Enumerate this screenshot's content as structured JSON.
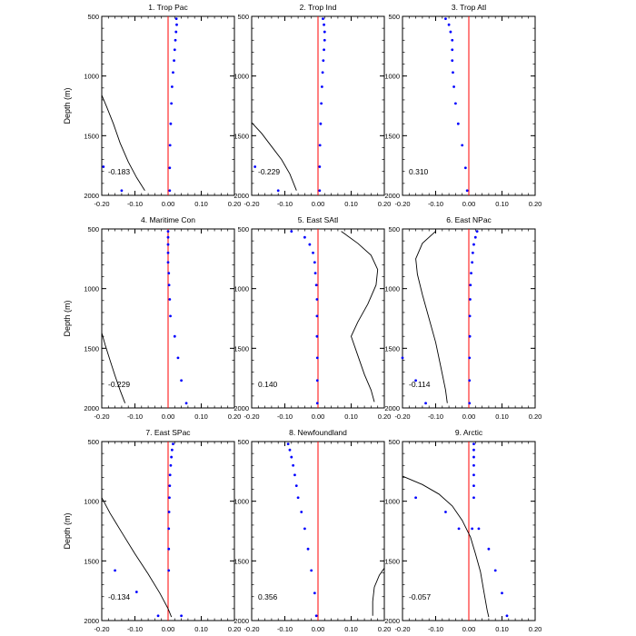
{
  "figure": {
    "ylabel": "Depth (m)",
    "xticks": [
      -0.2,
      -0.1,
      0.0,
      0.1,
      0.2
    ],
    "xtick_labels": [
      "-0.20",
      "-0.10",
      "0.00",
      "0.10",
      "0.20"
    ],
    "yticks": [
      500,
      1000,
      1500,
      2000
    ],
    "ytick_labels": [
      "500",
      "1000",
      "1500",
      "2000"
    ]
  },
  "colors": {
    "dots": "#0000ff",
    "zero_line": "#ff0000",
    "curve": "#000000",
    "frame": "#000000"
  },
  "chart_data": [
    {
      "type": "scatter",
      "title": "1. Trop Pac",
      "annotation": "-0.183",
      "xlim": [
        -0.2,
        0.2
      ],
      "ylim": [
        500,
        2000
      ],
      "y_inverted": true,
      "dots": [
        [
          0.025,
          520
        ],
        [
          0.026,
          570
        ],
        [
          0.024,
          630
        ],
        [
          0.022,
          700
        ],
        [
          0.02,
          780
        ],
        [
          0.018,
          870
        ],
        [
          0.015,
          970
        ],
        [
          0.012,
          1090
        ],
        [
          0.01,
          1230
        ],
        [
          0.008,
          1400
        ],
        [
          0.006,
          1580
        ],
        [
          0.005,
          1770
        ],
        [
          -0.195,
          1760
        ],
        [
          -0.14,
          1960
        ],
        [
          0.005,
          1960
        ]
      ],
      "curve": [
        [
          -0.2,
          1160
        ],
        [
          -0.185,
          1260
        ],
        [
          -0.165,
          1400
        ],
        [
          -0.145,
          1560
        ],
        [
          -0.12,
          1720
        ],
        [
          -0.095,
          1850
        ],
        [
          -0.07,
          1960
        ]
      ]
    },
    {
      "type": "scatter",
      "title": "2. Trop Ind",
      "annotation": "-0.229",
      "xlim": [
        -0.2,
        0.2
      ],
      "ylim": [
        500,
        2000
      ],
      "y_inverted": true,
      "dots": [
        [
          0.015,
          520
        ],
        [
          0.018,
          570
        ],
        [
          0.02,
          630
        ],
        [
          0.02,
          700
        ],
        [
          0.018,
          780
        ],
        [
          0.016,
          870
        ],
        [
          0.014,
          970
        ],
        [
          0.012,
          1090
        ],
        [
          0.01,
          1230
        ],
        [
          0.008,
          1400
        ],
        [
          0.006,
          1580
        ],
        [
          0.005,
          1760
        ],
        [
          -0.19,
          1760
        ],
        [
          -0.12,
          1960
        ],
        [
          0.005,
          1960
        ]
      ],
      "curve": [
        [
          -0.2,
          1390
        ],
        [
          -0.17,
          1480
        ],
        [
          -0.14,
          1590
        ],
        [
          -0.11,
          1700
        ],
        [
          -0.085,
          1820
        ],
        [
          -0.065,
          1960
        ]
      ]
    },
    {
      "type": "scatter",
      "title": "3. Trop Atl",
      "annotation": "0.310",
      "xlim": [
        -0.2,
        0.2
      ],
      "ylim": [
        500,
        2000
      ],
      "y_inverted": true,
      "dots": [
        [
          -0.07,
          520
        ],
        [
          -0.06,
          570
        ],
        [
          -0.055,
          630
        ],
        [
          -0.05,
          700
        ],
        [
          -0.05,
          780
        ],
        [
          -0.05,
          870
        ],
        [
          -0.048,
          970
        ],
        [
          -0.045,
          1090
        ],
        [
          -0.04,
          1230
        ],
        [
          -0.032,
          1400
        ],
        [
          -0.02,
          1580
        ],
        [
          -0.01,
          1770
        ],
        [
          -0.005,
          1960
        ]
      ],
      "curve": []
    },
    {
      "type": "scatter",
      "title": "4. Maritime Con",
      "annotation": "-0.229",
      "xlim": [
        -0.2,
        0.2
      ],
      "ylim": [
        500,
        2000
      ],
      "y_inverted": true,
      "dots": [
        [
          0,
          520
        ],
        [
          0,
          570
        ],
        [
          0,
          630
        ],
        [
          0,
          700
        ],
        [
          0,
          780
        ],
        [
          0.002,
          870
        ],
        [
          0.003,
          970
        ],
        [
          0.005,
          1090
        ],
        [
          0.007,
          1230
        ],
        [
          0.02,
          1400
        ],
        [
          0.03,
          1580
        ],
        [
          0.04,
          1770
        ],
        [
          0.055,
          1960
        ]
      ],
      "curve": [
        [
          -0.2,
          1370
        ],
        [
          -0.19,
          1470
        ],
        [
          -0.175,
          1600
        ],
        [
          -0.16,
          1730
        ],
        [
          -0.145,
          1850
        ],
        [
          -0.13,
          1960
        ]
      ]
    },
    {
      "type": "scatter",
      "title": "5. East SAtl",
      "annotation": "0.140",
      "xlim": [
        -0.2,
        0.2
      ],
      "ylim": [
        500,
        2000
      ],
      "y_inverted": true,
      "dots": [
        [
          -0.08,
          520
        ],
        [
          -0.04,
          570
        ],
        [
          -0.025,
          630
        ],
        [
          -0.015,
          700
        ],
        [
          -0.01,
          780
        ],
        [
          -0.008,
          870
        ],
        [
          -0.005,
          970
        ],
        [
          -0.003,
          1090
        ],
        [
          -0.003,
          1230
        ],
        [
          -0.003,
          1400
        ],
        [
          -0.002,
          1580
        ],
        [
          -0.002,
          1770
        ],
        [
          -0.002,
          1960
        ]
      ],
      "curve": [
        [
          0.07,
          520
        ],
        [
          0.12,
          620
        ],
        [
          0.16,
          720
        ],
        [
          0.18,
          840
        ],
        [
          0.175,
          970
        ],
        [
          0.15,
          1130
        ],
        [
          0.12,
          1280
        ],
        [
          0.1,
          1400
        ],
        [
          0.12,
          1560
        ],
        [
          0.14,
          1720
        ],
        [
          0.16,
          1850
        ],
        [
          0.17,
          1950
        ]
      ]
    },
    {
      "type": "scatter",
      "title": "6. East NPac",
      "annotation": "-0.114",
      "xlim": [
        -0.2,
        0.2
      ],
      "ylim": [
        500,
        2000
      ],
      "y_inverted": true,
      "dots": [
        [
          0.025,
          520
        ],
        [
          0.02,
          570
        ],
        [
          0.015,
          630
        ],
        [
          0.012,
          700
        ],
        [
          0.01,
          780
        ],
        [
          0.007,
          870
        ],
        [
          0.005,
          970
        ],
        [
          0.004,
          1090
        ],
        [
          0.003,
          1230
        ],
        [
          0.003,
          1400
        ],
        [
          0.002,
          1580
        ],
        [
          0.002,
          1770
        ],
        [
          0.002,
          1960
        ],
        [
          -0.2,
          1580
        ],
        [
          -0.16,
          1770
        ],
        [
          -0.13,
          1960
        ]
      ],
      "curve": [
        [
          -0.1,
          520
        ],
        [
          -0.14,
          620
        ],
        [
          -0.16,
          750
        ],
        [
          -0.155,
          880
        ],
        [
          -0.14,
          1050
        ],
        [
          -0.12,
          1250
        ],
        [
          -0.1,
          1450
        ],
        [
          -0.085,
          1650
        ],
        [
          -0.07,
          1850
        ],
        [
          -0.065,
          1960
        ]
      ]
    },
    {
      "type": "scatter",
      "title": "7. East SPac",
      "annotation": "-0.134",
      "xlim": [
        -0.2,
        0.2
      ],
      "ylim": [
        500,
        2000
      ],
      "y_inverted": true,
      "dots": [
        [
          0.015,
          520
        ],
        [
          0.012,
          570
        ],
        [
          0.01,
          630
        ],
        [
          0.008,
          700
        ],
        [
          0.006,
          780
        ],
        [
          0.005,
          870
        ],
        [
          0.004,
          970
        ],
        [
          0.003,
          1090
        ],
        [
          0.002,
          1230
        ],
        [
          0.002,
          1400
        ],
        [
          0.002,
          1580
        ],
        [
          -0.16,
          1580
        ],
        [
          -0.095,
          1760
        ],
        [
          -0.03,
          1960
        ],
        [
          0.04,
          1960
        ]
      ],
      "curve": [
        [
          -0.2,
          970
        ],
        [
          -0.175,
          1100
        ],
        [
          -0.14,
          1260
        ],
        [
          -0.1,
          1440
        ],
        [
          -0.06,
          1610
        ],
        [
          -0.025,
          1770
        ],
        [
          0,
          1900
        ],
        [
          0.01,
          1970
        ]
      ]
    },
    {
      "type": "scatter",
      "title": "8. Newfoundland",
      "annotation": "0.356",
      "xlim": [
        -0.2,
        0.2
      ],
      "ylim": [
        500,
        2000
      ],
      "y_inverted": true,
      "dots": [
        [
          -0.09,
          520
        ],
        [
          -0.085,
          570
        ],
        [
          -0.08,
          630
        ],
        [
          -0.075,
          700
        ],
        [
          -0.07,
          780
        ],
        [
          -0.065,
          870
        ],
        [
          -0.06,
          970
        ],
        [
          -0.05,
          1090
        ],
        [
          -0.04,
          1230
        ],
        [
          -0.03,
          1400
        ],
        [
          -0.02,
          1580
        ],
        [
          -0.01,
          1770
        ],
        [
          -0.005,
          1960
        ]
      ],
      "curve": [
        [
          0.2,
          1560
        ],
        [
          0.185,
          1620
        ],
        [
          0.17,
          1720
        ],
        [
          0.165,
          1840
        ],
        [
          0.165,
          1960
        ]
      ]
    },
    {
      "type": "scatter",
      "title": "9. Arctic",
      "annotation": "-0.057",
      "xlim": [
        -0.2,
        0.2
      ],
      "ylim": [
        500,
        2000
      ],
      "y_inverted": true,
      "dots": [
        [
          0.015,
          520
        ],
        [
          0.015,
          570
        ],
        [
          0.015,
          630
        ],
        [
          0.015,
          700
        ],
        [
          0.015,
          780
        ],
        [
          0.015,
          870
        ],
        [
          0.015,
          970
        ],
        [
          -0.16,
          970
        ],
        [
          -0.07,
          1090
        ],
        [
          -0.03,
          1230
        ],
        [
          0.01,
          1230
        ],
        [
          0.03,
          1230
        ],
        [
          0.06,
          1400
        ],
        [
          0.08,
          1580
        ],
        [
          0.1,
          1770
        ],
        [
          0.115,
          1960
        ]
      ],
      "curve": [
        [
          -0.2,
          790
        ],
        [
          -0.14,
          860
        ],
        [
          -0.09,
          940
        ],
        [
          -0.05,
          1040
        ],
        [
          -0.02,
          1160
        ],
        [
          0.005,
          1300
        ],
        [
          0.02,
          1440
        ],
        [
          0.035,
          1590
        ],
        [
          0.045,
          1750
        ],
        [
          0.055,
          1910
        ],
        [
          0.06,
          1970
        ]
      ]
    }
  ]
}
